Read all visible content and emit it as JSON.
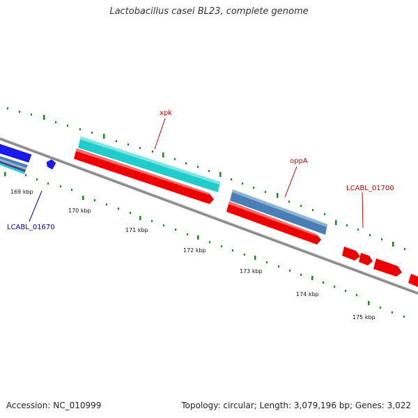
{
  "title": "Lactobacillus casei BL23, complete genome",
  "accession": "Accession: NC_010999",
  "summary": "Topology: circular; Length: 3,079,196 bp; Genes: 3,022",
  "scale_labels": [
    "169 kbp",
    "170 kbp",
    "171 kbp",
    "172 kbp",
    "173 kbp",
    "174 kbp",
    "175 kbp"
  ],
  "gene_labels": [
    {
      "name": "xpk",
      "color": "#cc0000"
    },
    {
      "name": "oppA",
      "color": "#cc0000"
    },
    {
      "name": "LCABL_01700",
      "color": "#cc0000"
    },
    {
      "name": "LCABL_01670",
      "color": "#0000aa"
    }
  ],
  "colors": {
    "cds_forward": "#ee0000",
    "cds_blue": "#1a1aee",
    "rrna": "#22cccc",
    "trna": "#4a7fb5",
    "backbone": "#888888",
    "ticks": "#1a8a1a"
  }
}
